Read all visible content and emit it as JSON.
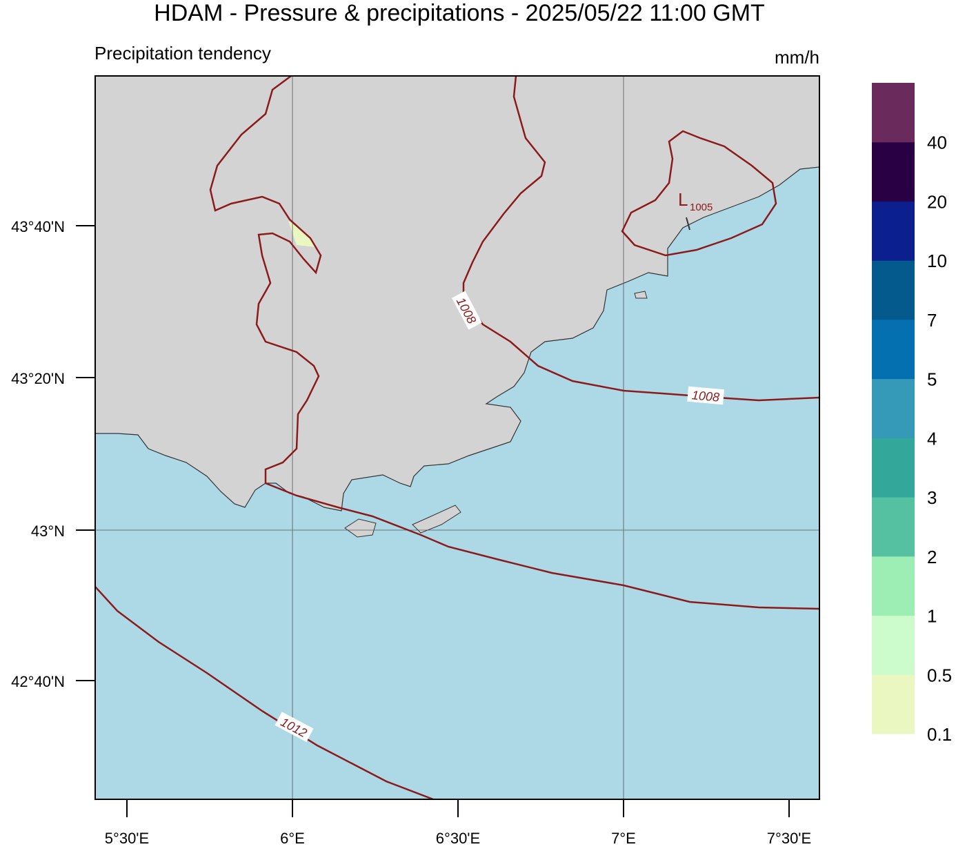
{
  "header": {
    "title": "HDAM - Pressure & precipitations  -  2025/05/22  11:00 GMT",
    "subtitle": "Precipitation tendency",
    "unit": "mm/h"
  },
  "map": {
    "lat_labels": [
      "43°40'N",
      "43°20'N",
      "43°N",
      "42°40'N"
    ],
    "lon_labels": [
      "5°30'E",
      "6°E",
      "6°30'E",
      "7°E",
      "7°30'E"
    ],
    "isobar_labels": [
      "1008",
      "1008",
      "1012"
    ],
    "low": {
      "letter": "L",
      "value": "1005"
    }
  },
  "colorbar": {
    "colors": [
      "#eaf7c0",
      "#ccfccc",
      "#9deeb5",
      "#55c1a0",
      "#33a89a",
      "#3599b8",
      "#0570b0",
      "#045a8d",
      "#0c1f8f",
      "#2a0045",
      "#6a2a5b"
    ],
    "levels": [
      0.1,
      0.5,
      1,
      2,
      3,
      4,
      5,
      7,
      10,
      20,
      40
    ]
  }
}
